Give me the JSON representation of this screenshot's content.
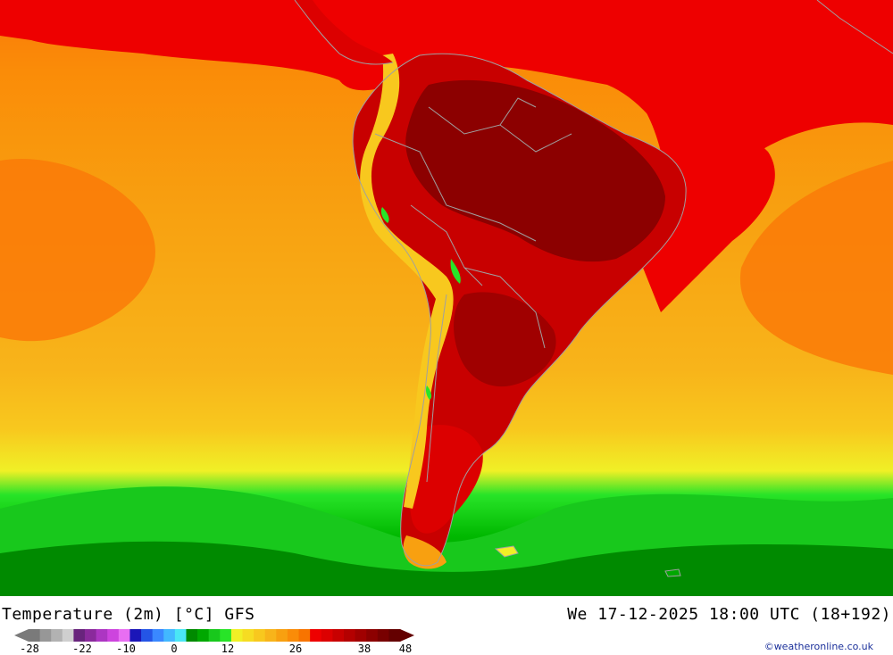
{
  "map": {
    "title_left": "Temperature (2m) [°C] GFS",
    "title_right": "We 17-12-2025 18:00 UTC (18+192)",
    "credit": "©weatheronline.co.uk"
  },
  "legend": {
    "ticks": [
      "-28",
      "-22",
      "-10",
      "0",
      "12",
      "26",
      "38",
      "48"
    ],
    "colors": [
      "#7a7a7a",
      "#979797",
      "#b2b2b2",
      "#cfcfcf",
      "#68247c",
      "#8a2a9c",
      "#ac36c2",
      "#cd44de",
      "#e86ef2",
      "#1b16b8",
      "#2455e6",
      "#3a88ff",
      "#42b8ff",
      "#4ae6f5",
      "#008a00",
      "#00a800",
      "#18c81c",
      "#28e428",
      "#f0f026",
      "#f6dc22",
      "#f8c81e",
      "#f8b41a",
      "#f8a010",
      "#fa8c08",
      "#f87400",
      "#ee0000",
      "#dc0000",
      "#c80000",
      "#b40000",
      "#a00000",
      "#8c0000",
      "#780000",
      "#640000"
    ]
  },
  "colors": {
    "ocean_warm": "#fa8c08",
    "ocean_mid": "#f8a010",
    "ocean_cool": "#f8c81e",
    "cold": "#00a800",
    "hot": "#ee0000",
    "very_hot": "#a00000",
    "border": "#a0a0a0"
  }
}
